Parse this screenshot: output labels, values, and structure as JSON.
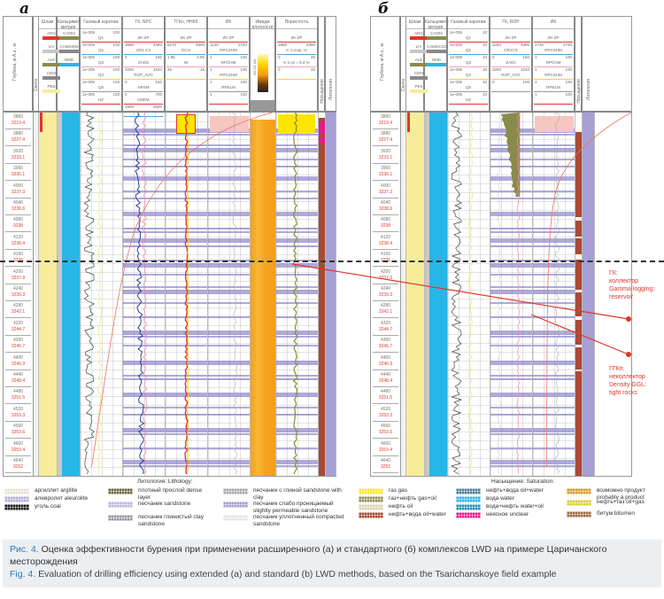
{
  "panels": {
    "a": {
      "letter": "а",
      "columns": {
        "depth": "Глубина, м А.о., м",
        "strat": "Свита",
        "shlam": "Шлам",
        "calcimetry": "Кальцимет-метрия",
        "gas": "Газовый каротаж",
        "gr": "ГК, NPC",
        "ggk": "ГГКн, ННКб",
        "ik": "ИК",
        "image": "Имидж плотности",
        "porosity": "Пористость",
        "saturation": "Насыщение",
        "lithology": "Литология"
      },
      "shlam_legend": [
        "ARG",
        "LIV",
        "ALE",
        "CEM",
        "PES"
      ],
      "calc_legend": [
        "CA003",
        "CAMG003",
        "NMD"
      ],
      "gas_rows": [
        {
          "name": "Q1",
          "lo": "1e-005",
          "hi": "100"
        },
        {
          "name": "Q2",
          "lo": "1e-005",
          "hi": "100"
        },
        {
          "name": "Q3",
          "lo": "1e-005",
          "hi": "100"
        },
        {
          "name": "Q4",
          "lo": "1e-005",
          "hi": "100"
        },
        {
          "name": "Q5",
          "lo": "1e-005",
          "hi": "100"
        },
        {
          "name": "HZ",
          "lo": "1e-005",
          "hi": "100"
        }
      ],
      "gr_rows": [
        {
          "name": "ZK-ZP",
          "lo": "",
          "hi": ""
        },
        {
          "name": "GR1 CX",
          "lo": "3660",
          "hi": "4380"
        },
        {
          "name": "ZADS",
          "lo": "0",
          "hi": "150"
        },
        {
          "name": "ROP_AVG",
          "lo": "3250",
          "hi": "3240"
        },
        {
          "name": "NPSM",
          "lo": "0",
          "hi": "150"
        },
        {
          "name": "NNEM",
          "lo": "0",
          "hi": "700"
        },
        {
          "name": "",
          "lo": "1500",
          "hi": "2500"
        }
      ],
      "ggk_rows": [
        {
          "name": "ZK-ZP",
          "lo": "",
          "hi": ""
        },
        {
          "name": "DCH",
          "lo": "6270",
          "hi": "4800"
        },
        {
          "name": "W",
          "lo": "1.95",
          "hi": "2.95"
        },
        {
          "name": "",
          "lo": "45",
          "hi": "-15"
        }
      ],
      "ik_rows": [
        {
          "name": "ZK-ZP",
          "lo": "",
          "hi": ""
        },
        {
          "name": "RPCSHM",
          "lo": "1130",
          "hi": "2740"
        },
        {
          "name": "RPCHM",
          "lo": "1",
          "hi": "100"
        },
        {
          "name": "RPCSHM",
          "lo": "1",
          "hi": "100"
        },
        {
          "name": "RPELM",
          "lo": "1",
          "hi": "100"
        },
        {
          "name": "",
          "lo": "1",
          "hi": "100"
        }
      ],
      "image_scale": "ZK ZG ZB",
      "porosity_rows": [
        {
          "name": "ZK-ZP",
          "lo": "",
          "hi": ""
        },
        {
          "name": "K п.откр, %",
          "lo": "2650",
          "hi": "2390"
        },
        {
          "name": "K п.ср = 8.4 %",
          "lo": "0",
          "hi": "25"
        },
        {
          "name": "",
          "lo": "0",
          "hi": "25"
        }
      ]
    },
    "b": {
      "letter": "б",
      "columns": {
        "depth": "Глубина, м А.о., м",
        "strat": "Свита",
        "shlam": "Шлам",
        "calcimetry": "Кальцимет-метрия",
        "gas": "Газовый каротаж",
        "gr": "ГК, ROP",
        "ik": "ИК",
        "saturation": "Насыщение",
        "lithology": "Литология"
      },
      "shlam_legend": [
        "ARG",
        "LIV",
        "ALE",
        "CEM",
        "PES"
      ],
      "calc_legend": [
        "CA003",
        "CAMGCO3",
        "NMD"
      ],
      "gas_rows": [
        {
          "name": "Q1",
          "lo": "1e-005",
          "hi": "10"
        },
        {
          "name": "Q2",
          "lo": "1e-005",
          "hi": "10"
        },
        {
          "name": "Q3",
          "lo": "1e-005",
          "hi": "10"
        },
        {
          "name": "Q4",
          "lo": "1e-005",
          "hi": "10"
        },
        {
          "name": "Q5",
          "lo": "1e-005",
          "hi": "10"
        },
        {
          "name": "HZ",
          "lo": "1e-005",
          "hi": "10"
        }
      ],
      "gr_rows": [
        {
          "name": "ZK-ZP",
          "lo": "",
          "hi": ""
        },
        {
          "name": "GR1CX",
          "lo": "3440",
          "hi": "4380"
        },
        {
          "name": "ZADs",
          "lo": "0",
          "hi": "150"
        },
        {
          "name": "ROP_AVG",
          "lo": "3250",
          "hi": "3240"
        },
        {
          "name": "",
          "lo": "0",
          "hi": "100"
        }
      ],
      "ik_rows": [
        {
          "name": "ZK-ZP",
          "lo": "",
          "hi": ""
        },
        {
          "name": "RPCSHM",
          "lo": "1730",
          "hi": "2740"
        },
        {
          "name": "RPCHM",
          "lo": "1",
          "hi": "100"
        },
        {
          "name": "RPCSHM",
          "lo": "1",
          "hi": "100"
        },
        {
          "name": "RPELM",
          "lo": "1",
          "hi": "100"
        },
        {
          "name": "",
          "lo": "1",
          "hi": "100"
        }
      ]
    }
  },
  "depth_ticks": [
    {
      "md": "3860",
      "tvd": "3219.4"
    },
    {
      "md": "3880",
      "tvd": "3227.4"
    },
    {
      "md": "3920",
      "tvd": "3233.1"
    },
    {
      "md": "3960",
      "tvd": "3236.1"
    },
    {
      "md": "4000",
      "tvd": "3237.3"
    },
    {
      "md": "4040",
      "tvd": "3238.6"
    },
    {
      "md": "4080",
      "tvd": "3238"
    },
    {
      "md": "4120",
      "tvd": "3238.4"
    },
    {
      "md": "4160",
      "tvd": "3236"
    },
    {
      "md": "4200",
      "tvd": "3237.9"
    },
    {
      "md": "4240",
      "tvd": "3239.3"
    },
    {
      "md": "4280",
      "tvd": "3242.1"
    },
    {
      "md": "4320",
      "tvd": "3244.7"
    },
    {
      "md": "4360",
      "tvd": "3245.7"
    },
    {
      "md": "4400",
      "tvd": "3246.9"
    },
    {
      "md": "4440",
      "tvd": "3248.4"
    },
    {
      "md": "4480",
      "tvd": "3251.5"
    },
    {
      "md": "4520",
      "tvd": "3253.3"
    },
    {
      "md": "4560",
      "tvd": "3253.6"
    },
    {
      "md": "4600",
      "tvd": "3253.4"
    },
    {
      "md": "4640",
      "tvd": "3252"
    }
  ],
  "annotations": {
    "gk": [
      "ГК:",
      "коллектор",
      "Gamma logging:",
      "reservoir"
    ],
    "ggkn": [
      "ГГКп:",
      "неколлектор",
      "Density GGL:",
      "tight rocks"
    ]
  },
  "colors": {
    "annotation_red": "#e2352b",
    "tvd_red": "#e23b2b",
    "water_blue": "#29b6e6",
    "sand_yellow": "#f7ec9a",
    "band_purple": "#6e64be",
    "oil_water_brown": "#a84a34",
    "image_orange": "#f5a623",
    "caption_blue": "#2a7ab8",
    "caption_bg": "#eceff1"
  },
  "legend": {
    "lithology_title": "Литология: Lithology:",
    "saturation_title": "Насыщение: Saturation:",
    "lith_left": [
      {
        "label": "аргиллит argilite",
        "color": "#e6e4d2"
      },
      {
        "label": "алевролит aleurolite",
        "color": "#b7b0e0"
      },
      {
        "label": "уголь coal",
        "color": "#1a1a1a"
      }
    ],
    "lith_mid": [
      {
        "label": "плотный прослой dense layer",
        "color": "#6f6a3f"
      },
      {
        "label": "песчаник sandstone",
        "color": "#bdb8dc"
      },
      {
        "label": "песчаник глинистый clay sandstone",
        "color": "#9a98a8"
      }
    ],
    "lith_right": [
      {
        "label": "песчаник с глиной sandstone with clay",
        "color": "#a9a6ae"
      },
      {
        "label": "песчаник слабо проницаемый slightly permeable sandstone",
        "color": "#a29ed4"
      },
      {
        "label": "песчаник уплотненный compacted sandstone",
        "color": "#e4e4ea"
      }
    ],
    "sat_left": [
      {
        "label": "газ gas",
        "color": "#fbe62a"
      },
      {
        "label": "газ+нефть gas+oil",
        "color": "#968d5e"
      },
      {
        "label": "нефть oil",
        "color": "#d8d3b0"
      },
      {
        "label": "нефть+вода oil+water",
        "color": "#a84a34"
      }
    ],
    "sat_mid": [
      {
        "label": "нефть+вода oil+water",
        "color": "#4e7f98"
      },
      {
        "label": "вода water",
        "color": "#29b6e6"
      },
      {
        "label": "вода+нефть water+oil",
        "color": "#2a93bb"
      },
      {
        "label": "неясное unclear",
        "color": "#e8178a"
      }
    ],
    "sat_right": [
      {
        "label": "возможно продукт probably a product",
        "color": "#d99a2b"
      },
      {
        "label": "нефть+газ oil+gas",
        "color": "#dcd12e"
      },
      {
        "label": "битум bitumen",
        "color": "#9e6a3c"
      }
    ]
  },
  "caption": {
    "ru_label": "Рис. 4.",
    "ru_text": "Оценка эффективности бурения при применении расширенного (а) и стандартного (б) комплексов LWD на примере Царичанского месторождения",
    "en_label": "Fig. 4.",
    "en_text": "Evaluation of drilling efficiency using extended (a) and standard (b) LWD methods, based on the Tsarichanskoye field example"
  }
}
